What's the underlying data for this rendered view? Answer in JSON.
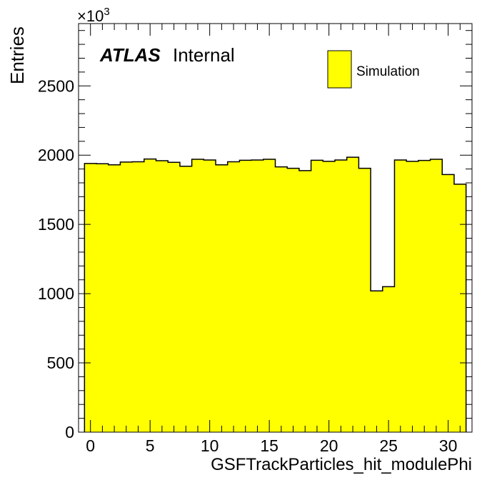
{
  "chart_data": {
    "type": "bar",
    "histogram": true,
    "xlabel": "GSFTrackParticles_hit_modulePhi",
    "ylabel": "Entries",
    "y_multiplier_label": "10",
    "y_multiplier_exponent": "3",
    "xlim": [
      -1,
      32
    ],
    "ylim": [
      0,
      2950
    ],
    "xticks": [
      0,
      5,
      10,
      15,
      20,
      25,
      30
    ],
    "xtick_labels": [
      "0",
      "5",
      "10",
      "15",
      "20",
      "25",
      "30"
    ],
    "yticks": [
      0,
      500,
      1000,
      1500,
      2000,
      2500
    ],
    "ytick_labels": [
      "0",
      "500",
      "1000",
      "1500",
      "2000",
      "2500"
    ],
    "bin_edges_start": -0.5,
    "bin_width": 1,
    "values": [
      1940,
      1938,
      1930,
      1950,
      1952,
      1972,
      1960,
      1948,
      1920,
      1970,
      1965,
      1930,
      1952,
      1963,
      1965,
      1970,
      1915,
      1905,
      1888,
      1963,
      1955,
      1965,
      1985,
      1905,
      1020,
      1050,
      1965,
      1955,
      1962,
      1970,
      1860,
      1790
    ],
    "series": [
      {
        "name": "Simulation",
        "color": "#ffff00"
      }
    ],
    "legend_position": "top-right",
    "annotation": {
      "bold": "ATLAS",
      "normal": "Internal"
    },
    "grid": false
  }
}
